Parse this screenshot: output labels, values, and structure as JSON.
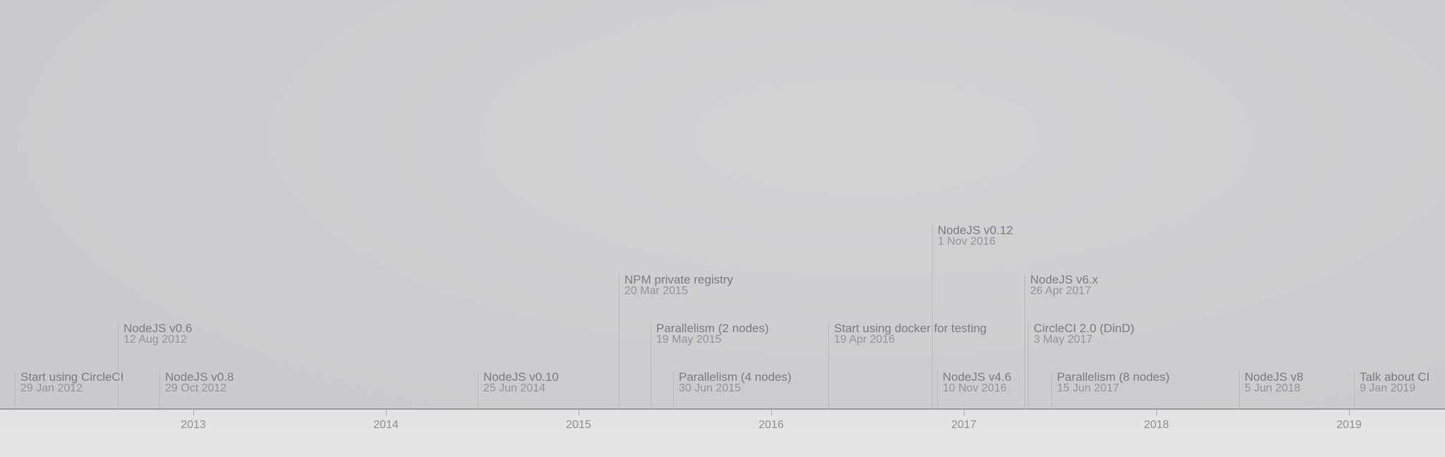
{
  "axis": {
    "years": [
      "2013",
      "2014",
      "2015",
      "2016",
      "2017",
      "2018",
      "2019"
    ]
  },
  "events": [
    {
      "title": "Start using CircleCI",
      "date": "29 Jan 2012"
    },
    {
      "title": "NodeJS v0.6",
      "date": "12 Aug 2012"
    },
    {
      "title": "NodeJS v0.8",
      "date": "29 Oct 2012"
    },
    {
      "title": "NodeJS v0.10",
      "date": "25 Jun 2014"
    },
    {
      "title": "NPM private registry",
      "date": "20 Mar 2015"
    },
    {
      "title": "Parallelism (2 nodes)",
      "date": "19 May 2015"
    },
    {
      "title": "Parallelism (4 nodes)",
      "date": "30 Jun 2015"
    },
    {
      "title": "Start using docker for testing",
      "date": "19 Apr 2016"
    },
    {
      "title": "NodeJS v0.12",
      "date": "1 Nov 2016"
    },
    {
      "title": "NodeJS v4.6",
      "date": "10 Nov 2016"
    },
    {
      "title": "NodeJS v6.x",
      "date": "26 Apr 2017"
    },
    {
      "title": "CircleCI 2.0 (DinD)",
      "date": "3 May 2017"
    },
    {
      "title": "Parallelism (8 nodes)",
      "date": "15 Jun 2017"
    },
    {
      "title": "NodeJS v8",
      "date": "5 Jun 2018"
    },
    {
      "title": "Talk about CI",
      "date": "9 Jan 2019"
    }
  ]
}
